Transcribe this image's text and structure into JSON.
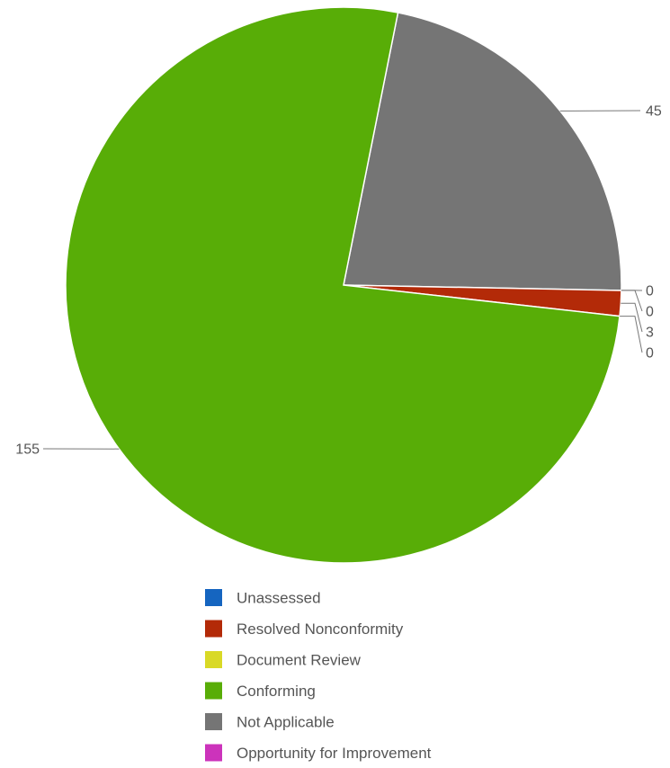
{
  "chart_data": {
    "type": "pie",
    "title": "",
    "legend_position": "bottom",
    "start_series": "Not Applicable",
    "slices": [
      {
        "name": "Not Applicable",
        "value": 45,
        "color": "#757575"
      },
      {
        "name": "Unassessed",
        "value": 0,
        "color": "#1565c0"
      },
      {
        "name": "Opportunity for Improvement",
        "value": 0,
        "color": "#cc33bb"
      },
      {
        "name": "Resolved Nonconformity",
        "value": 3,
        "color": "#b32a08"
      },
      {
        "name": "Document Review",
        "value": 0,
        "color": "#d9d926"
      },
      {
        "name": "Conforming",
        "value": 155,
        "color": "#58ad07"
      }
    ],
    "legend": [
      {
        "name": "Unassessed",
        "color": "#1565c0"
      },
      {
        "name": "Resolved Nonconformity",
        "color": "#b32a08"
      },
      {
        "name": "Document Review",
        "color": "#d9d926"
      },
      {
        "name": "Conforming",
        "color": "#58ad07"
      },
      {
        "name": "Not Applicable",
        "color": "#757575"
      },
      {
        "name": "Opportunity for Improvement",
        "color": "#cc33bb"
      }
    ]
  }
}
